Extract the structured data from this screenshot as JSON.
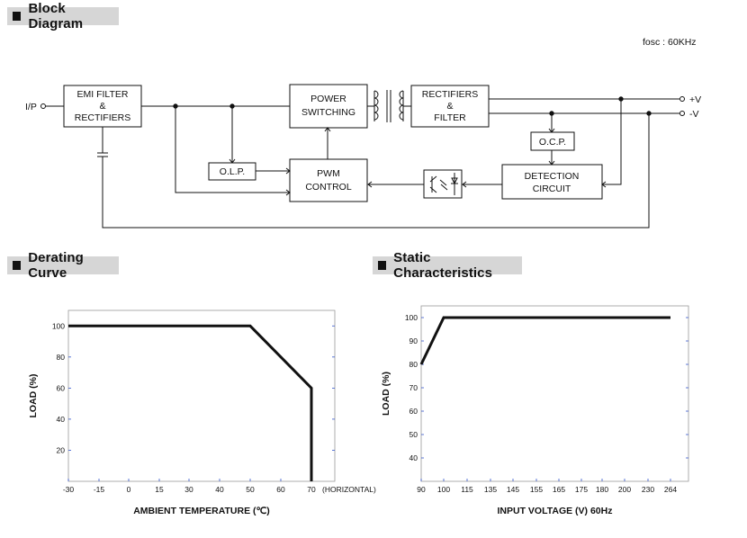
{
  "sections": {
    "block_diagram": "Block Diagram",
    "derating_curve": "Derating Curve",
    "static_characteristics": "Static Characteristics"
  },
  "block_diagram": {
    "fosc": "fosc :  60KHz",
    "input_label": "I/P",
    "output_pos": "+V",
    "output_neg": "-V",
    "blocks": {
      "emi_filter": [
        "EMI FILTER",
        "&",
        "RECTIFIERS"
      ],
      "power_switching": [
        "POWER",
        "SWITCHING"
      ],
      "rectifiers_filter": [
        "RECTIFIERS",
        "&",
        "FILTER"
      ],
      "olp": "O.L.P.",
      "pwm_control": [
        "PWM",
        "CONTROL"
      ],
      "ocp": "O.C.P.",
      "detection_circuit": [
        "DETECTION",
        "CIRCUIT"
      ]
    }
  },
  "chart_data": [
    {
      "type": "line",
      "title": "Derating Curve",
      "xlabel": "AMBIENT TEMPERATURE (℃)",
      "ylabel": "LOAD (%)",
      "x_ticks": [
        "-30",
        "-15",
        "0",
        "15",
        "30",
        "40",
        "50",
        "60",
        "70"
      ],
      "x_extra_label": "(HORIZONTAL)",
      "y_ticks": [
        "100",
        "80",
        "60",
        "40",
        "20"
      ],
      "ylim": [
        0,
        110
      ],
      "series": [
        {
          "points": [
            [
              "-30",
              100
            ],
            [
              "50",
              100
            ],
            [
              "70",
              60
            ],
            [
              "70",
              0
            ]
          ]
        }
      ]
    },
    {
      "type": "line",
      "title": "Static Characteristics",
      "xlabel": "INPUT VOLTAGE (V) 60Hz",
      "ylabel": "LOAD (%)",
      "x_ticks": [
        "90",
        "100",
        "115",
        "135",
        "145",
        "155",
        "165",
        "175",
        "180",
        "200",
        "230",
        "264"
      ],
      "y_ticks": [
        "100",
        "90",
        "80",
        "70",
        "60",
        "50",
        "40"
      ],
      "ylim": [
        30,
        105
      ],
      "series": [
        {
          "points": [
            [
              "90",
              80
            ],
            [
              "100",
              100
            ],
            [
              "264",
              100
            ]
          ]
        }
      ]
    }
  ]
}
